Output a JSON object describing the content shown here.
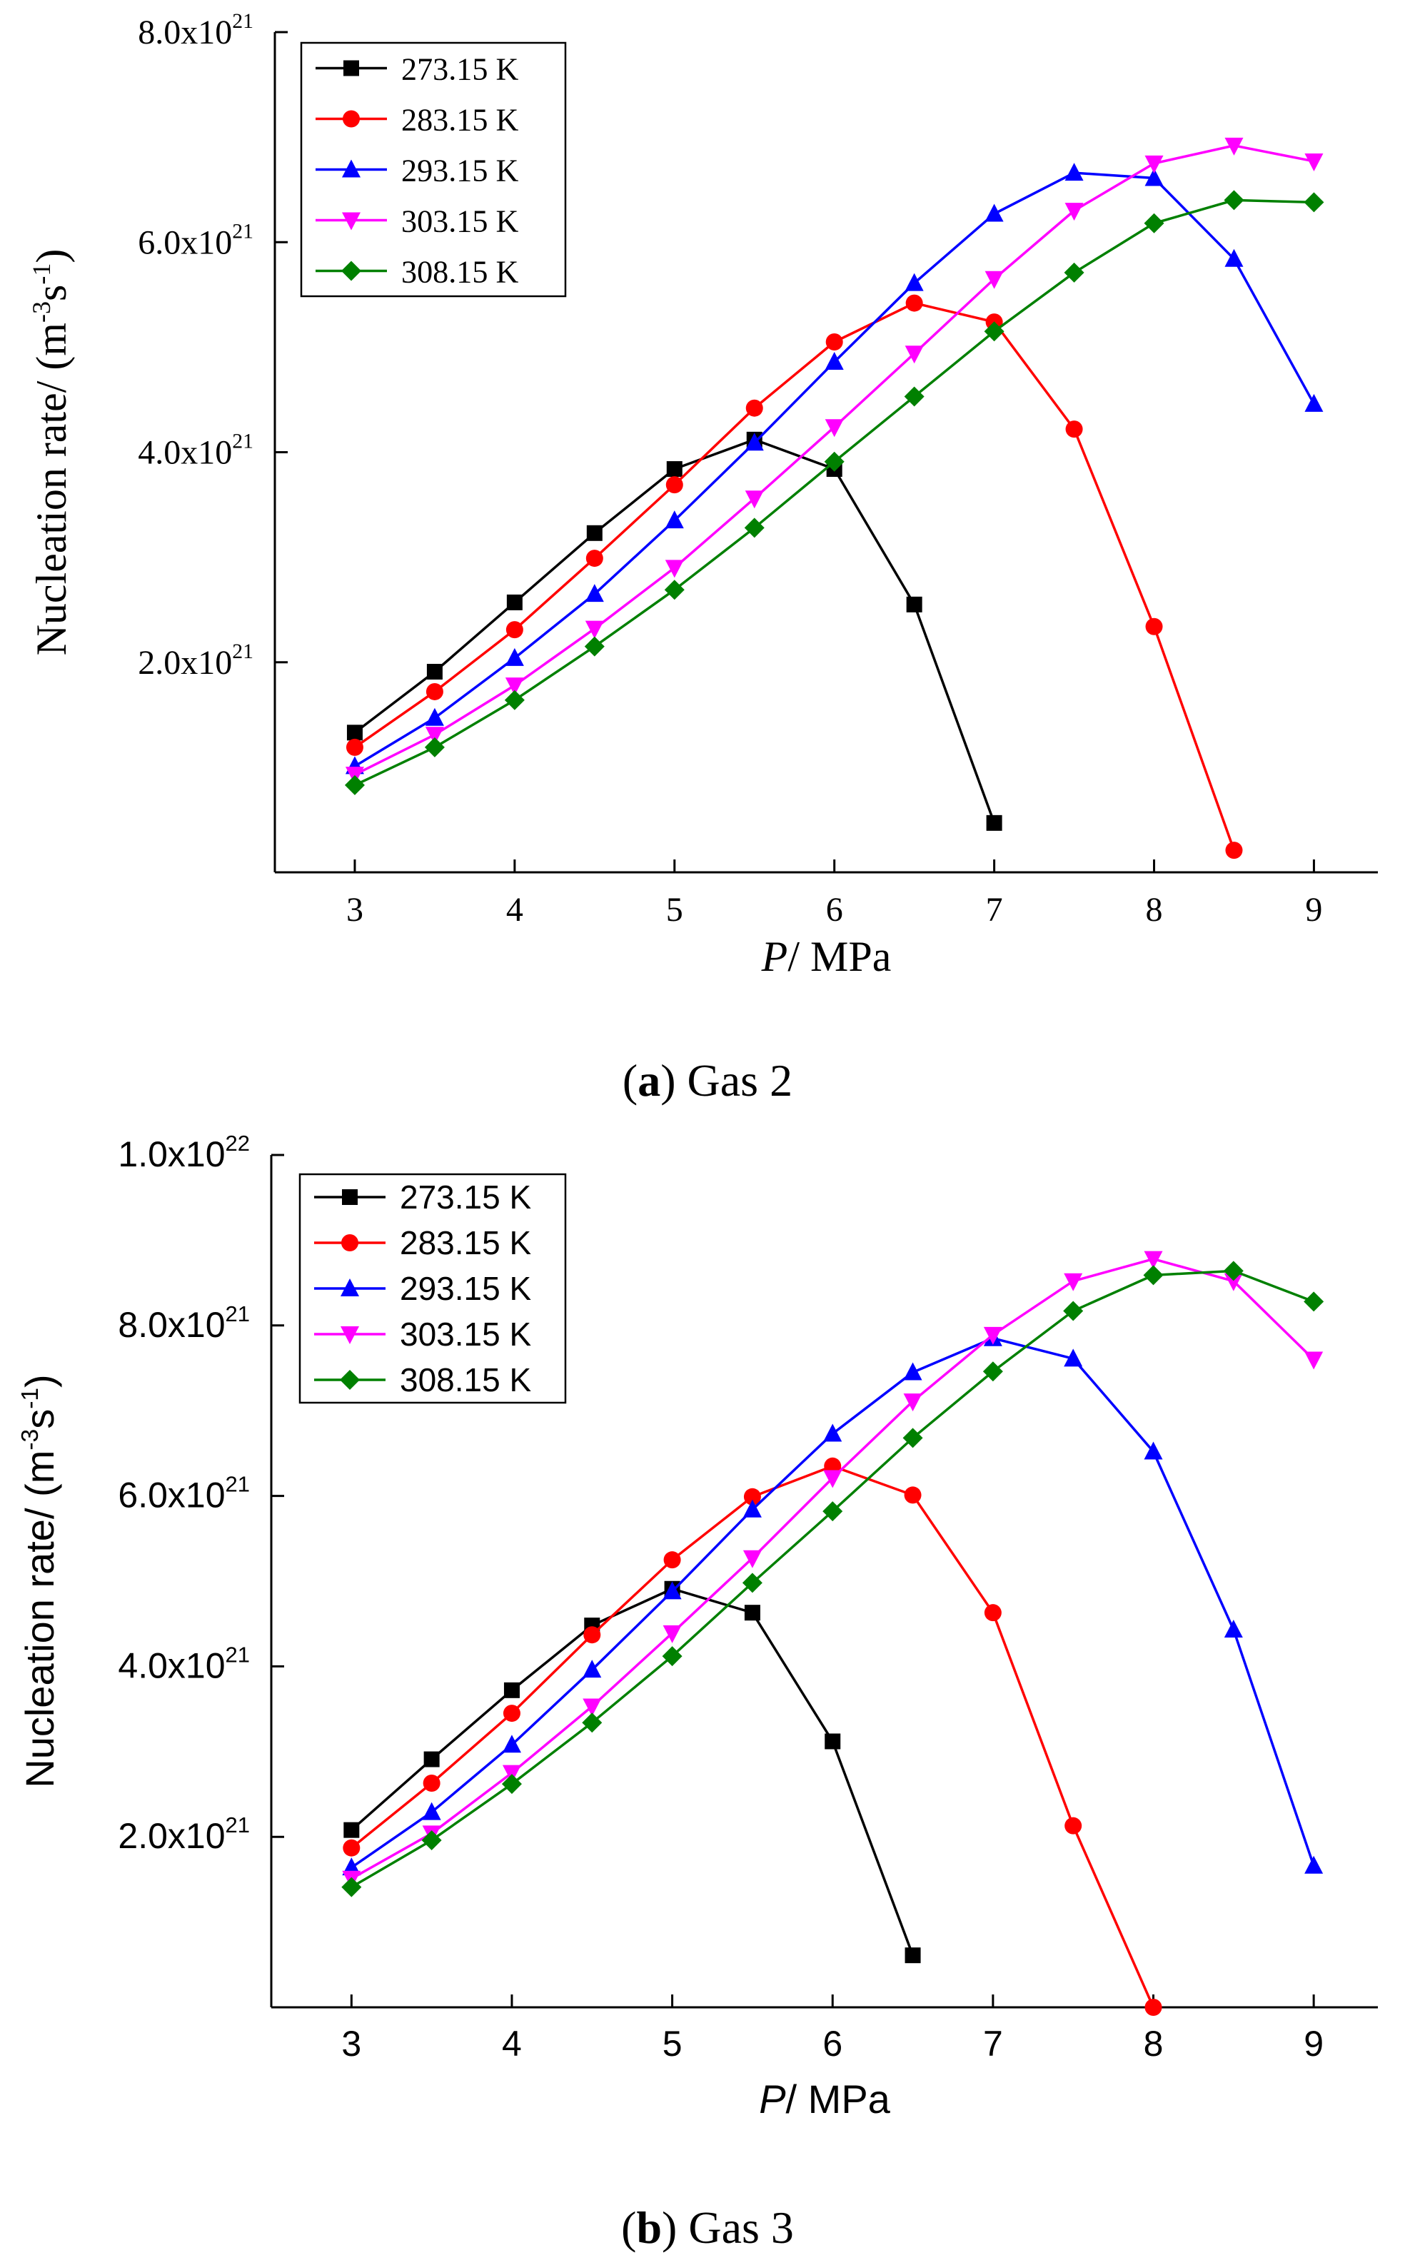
{
  "captions": {
    "a": {
      "letter": "a",
      "text": " Gas 2"
    },
    "b": {
      "letter": "b",
      "text": " Gas 3"
    }
  },
  "colors": {
    "273.15 K": "#000000",
    "283.15 K": "#ff0000",
    "293.15 K": "#0000ff",
    "303.15 K": "#ff00ff",
    "308.15 K": "#008000"
  },
  "chart_data": [
    {
      "id": "a",
      "type": "line",
      "title": "(a) Gas 2",
      "xlabel": "P/ MPa",
      "ylabel": "Nucleation rate/ (m-3s-1)",
      "xlim": [
        2.5,
        9.4
      ],
      "ylim": [
        0.0,
        8e+21
      ],
      "xticks": [
        3,
        4,
        5,
        6,
        7,
        8,
        9
      ],
      "yticks": [
        {
          "mantissa": "2.0x10",
          "exp": "21",
          "value": 2e+21
        },
        {
          "mantissa": "4.0x10",
          "exp": "21",
          "value": 4e+21
        },
        {
          "mantissa": "6.0x10",
          "exp": "21",
          "value": 6e+21
        },
        {
          "mantissa": "8.0x10",
          "exp": "21",
          "value": 8e+21
        }
      ],
      "legend": "top-left",
      "series": [
        {
          "name": "273.15 K",
          "marker": "square",
          "x": [
            3,
            3.5,
            4,
            4.5,
            5,
            5.5,
            6,
            6.5,
            7
          ],
          "y": [
            1.33e+21,
            1.91e+21,
            2.57e+21,
            3.23e+21,
            3.84e+21,
            4.12e+21,
            3.84e+21,
            2.55e+21,
            4.7e+20
          ]
        },
        {
          "name": "283.15 K",
          "marker": "circle",
          "x": [
            3,
            3.5,
            4,
            4.5,
            5,
            5.5,
            6,
            6.5,
            7,
            7.5,
            8,
            8.5
          ],
          "y": [
            1.19e+21,
            1.72e+21,
            2.31e+21,
            2.99e+21,
            3.69e+21,
            4.42e+21,
            5.05e+21,
            5.42e+21,
            5.24e+21,
            4.22e+21,
            2.34e+21,
            2.1e+20
          ]
        },
        {
          "name": "293.15 K",
          "marker": "triangle-up",
          "x": [
            3,
            3.5,
            4,
            4.5,
            5,
            5.5,
            6,
            6.5,
            7,
            7.5,
            8,
            8.5,
            9
          ],
          "y": [
            1.01e+21,
            1.47e+21,
            2.04e+21,
            2.65e+21,
            3.35e+21,
            4.09e+21,
            4.86e+21,
            5.61e+21,
            6.27e+21,
            6.66e+21,
            6.61e+21,
            5.84e+21,
            4.46e+21
          ]
        },
        {
          "name": "303.15 K",
          "marker": "triangle-down",
          "x": [
            3,
            3.5,
            4,
            4.5,
            5,
            5.5,
            6,
            6.5,
            7,
            7.5,
            8,
            8.5,
            9
          ],
          "y": [
            9.3e+20,
            1.31e+21,
            1.78e+21,
            2.32e+21,
            2.9e+21,
            3.56e+21,
            4.24e+21,
            4.94e+21,
            5.65e+21,
            6.3e+21,
            6.75e+21,
            6.92e+21,
            6.77e+21
          ]
        },
        {
          "name": "308.15 K",
          "marker": "diamond",
          "x": [
            3,
            3.5,
            4,
            4.5,
            5,
            5.5,
            6,
            6.5,
            7,
            7.5,
            8,
            8.5,
            9
          ],
          "y": [
            8.3e+20,
            1.19e+21,
            1.64e+21,
            2.15e+21,
            2.69e+21,
            3.28e+21,
            3.91e+21,
            4.53e+21,
            5.15e+21,
            5.71e+21,
            6.18e+21,
            6.4e+21,
            6.38e+21
          ]
        }
      ]
    },
    {
      "id": "b",
      "type": "line",
      "title": "(b) Gas 3",
      "xlabel": "P/ MPa",
      "ylabel": "Nucleation rate/ (m-3s-1)",
      "xlim": [
        2.5,
        9.4
      ],
      "ylim": [
        0.0,
        1e+22
      ],
      "xticks": [
        3,
        4,
        5,
        6,
        7,
        8,
        9
      ],
      "yticks": [
        {
          "mantissa": "2.0x10",
          "exp": "21",
          "value": 2e+21
        },
        {
          "mantissa": "4.0x10",
          "exp": "21",
          "value": 4e+21
        },
        {
          "mantissa": "6.0x10",
          "exp": "21",
          "value": 6e+21
        },
        {
          "mantissa": "8.0x10",
          "exp": "21",
          "value": 8e+21
        },
        {
          "mantissa": "1.0x10",
          "exp": "22",
          "value": 1e+22
        }
      ],
      "legend": "top-left",
      "series": [
        {
          "name": "273.15 K",
          "marker": "square",
          "x": [
            3,
            3.5,
            4,
            4.5,
            5,
            5.5,
            6,
            6.5
          ],
          "y": [
            2.08e+21,
            2.91e+21,
            3.72e+21,
            4.48e+21,
            4.91e+21,
            4.63e+21,
            3.12e+21,
            6.1e+20
          ]
        },
        {
          "name": "283.15 K",
          "marker": "circle",
          "x": [
            3,
            3.5,
            4,
            4.5,
            5,
            5.5,
            6,
            6.5,
            7,
            7.5,
            8
          ],
          "y": [
            1.87e+21,
            2.63e+21,
            3.45e+21,
            4.37e+21,
            5.25e+21,
            5.99e+21,
            6.35e+21,
            6.01e+21,
            4.63e+21,
            2.13e+21,
            0.0
          ]
        },
        {
          "name": "293.15 K",
          "marker": "triangle-up",
          "x": [
            3,
            3.5,
            4,
            4.5,
            5,
            5.5,
            6,
            6.5,
            7,
            7.5,
            8,
            8.5,
            9
          ],
          "y": [
            1.64e+21,
            2.29e+21,
            3.08e+21,
            3.96e+21,
            4.88e+21,
            5.84e+21,
            6.73e+21,
            7.45e+21,
            7.85e+21,
            7.61e+21,
            6.52e+21,
            4.43e+21,
            1.66e+21
          ]
        },
        {
          "name": "303.15 K",
          "marker": "triangle-down",
          "x": [
            3,
            3.5,
            4,
            4.5,
            5,
            5.5,
            6,
            6.5,
            7,
            7.5,
            8,
            8.5,
            9
          ],
          "y": [
            1.51e+21,
            2.04e+21,
            2.75e+21,
            3.53e+21,
            4.39e+21,
            5.27e+21,
            6.21e+21,
            7.11e+21,
            7.89e+21,
            8.52e+21,
            8.78e+21,
            8.52e+21,
            7.6e+21
          ]
        },
        {
          "name": "308.15 K",
          "marker": "diamond",
          "x": [
            3,
            3.5,
            4,
            4.5,
            5,
            5.5,
            6,
            6.5,
            7,
            7.5,
            8,
            8.5,
            9
          ],
          "y": [
            1.41e+21,
            1.96e+21,
            2.62e+21,
            3.34e+21,
            4.12e+21,
            4.98e+21,
            5.82e+21,
            6.68e+21,
            7.46e+21,
            8.17e+21,
            8.59e+21,
            8.64e+21,
            8.28e+21
          ]
        }
      ]
    }
  ]
}
